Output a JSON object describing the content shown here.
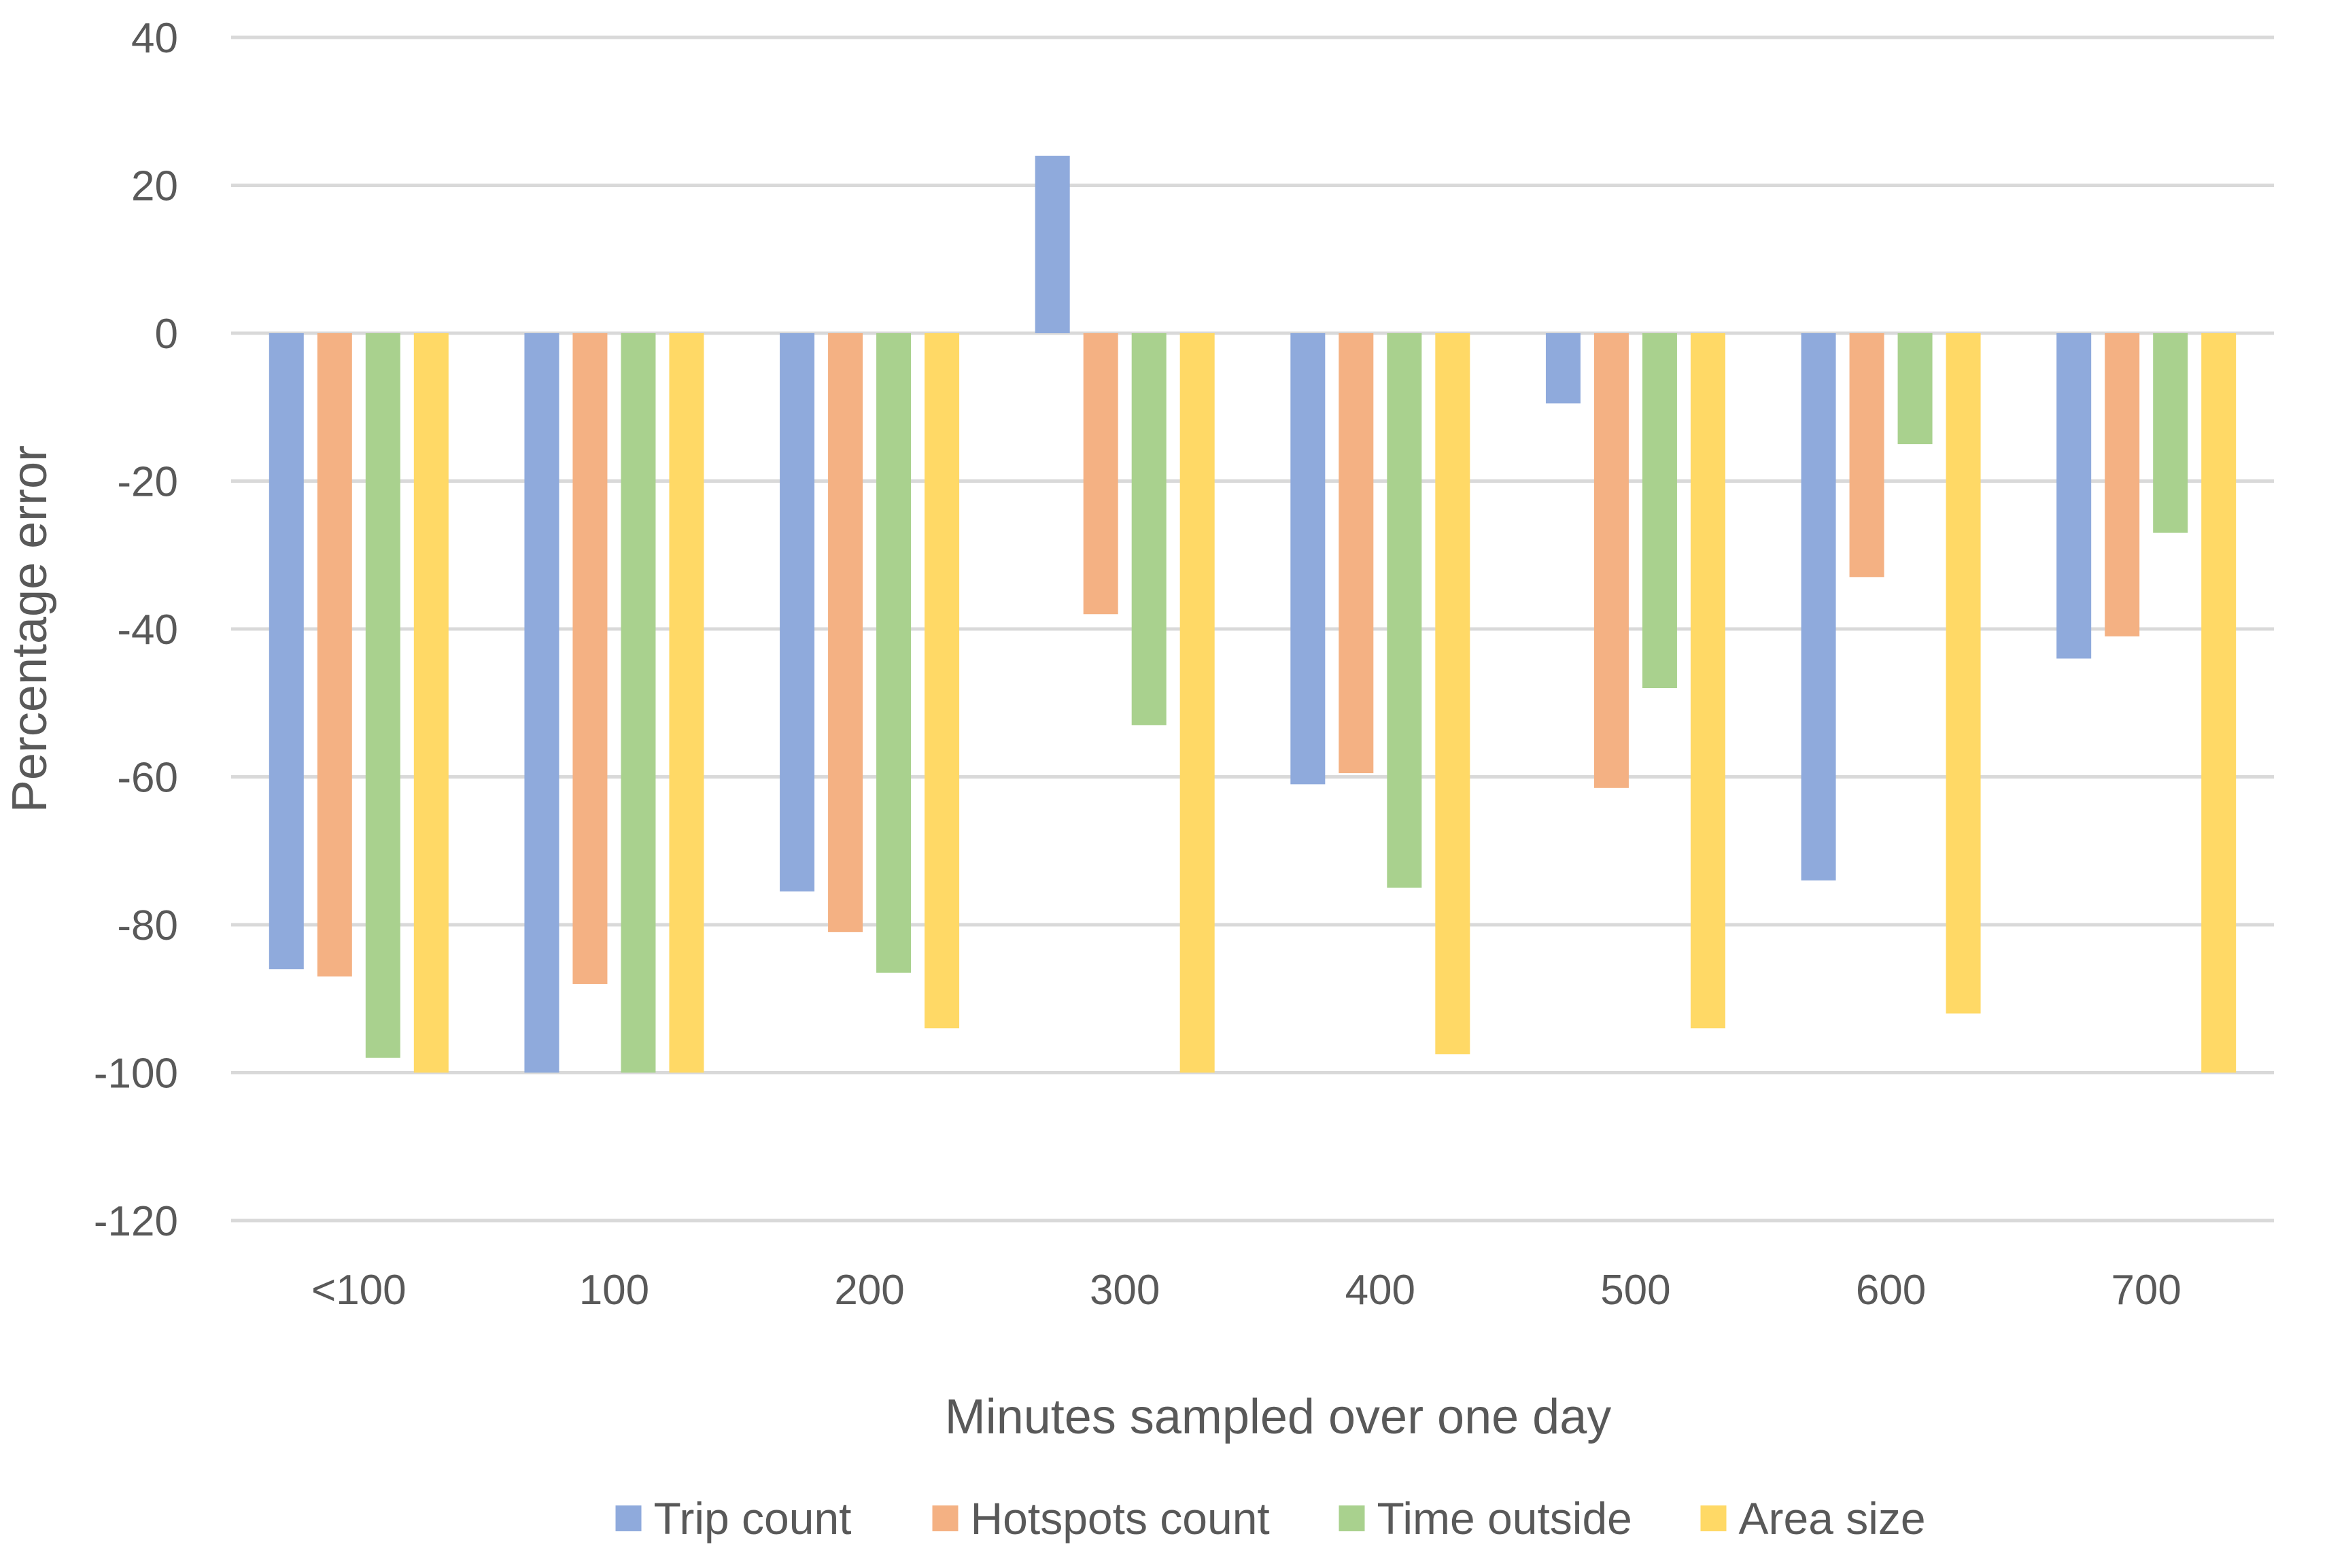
{
  "chart_data": {
    "type": "bar",
    "title": "",
    "xlabel": "Minutes sampled over one day",
    "ylabel": "Percentage error",
    "ylim": [
      -120,
      40
    ],
    "yticks": [
      40,
      20,
      0,
      -20,
      -40,
      -60,
      -80,
      -100,
      -120
    ],
    "grid": true,
    "legend_position": "bottom",
    "categories": [
      "<100",
      "100",
      "200",
      "300",
      "400",
      "500",
      "600",
      "700"
    ],
    "series": [
      {
        "name": "Trip count",
        "color": "#8faadc",
        "values": [
          -86,
          -100,
          -75.5,
          24,
          -61,
          -9.5,
          -74,
          -44
        ]
      },
      {
        "name": "Hotspots count",
        "color": "#f4b183",
        "values": [
          -87,
          -88,
          -81,
          -38,
          -59.5,
          -61.5,
          -33,
          -41
        ]
      },
      {
        "name": "Time outside",
        "color": "#a9d18e",
        "values": [
          -98,
          -100,
          -86.5,
          -53,
          -75,
          -48,
          -15,
          -27
        ]
      },
      {
        "name": "Area size",
        "color": "#ffd966",
        "values": [
          -100,
          -100,
          -94,
          -100,
          -97.5,
          -94,
          -92,
          -100
        ]
      }
    ]
  }
}
